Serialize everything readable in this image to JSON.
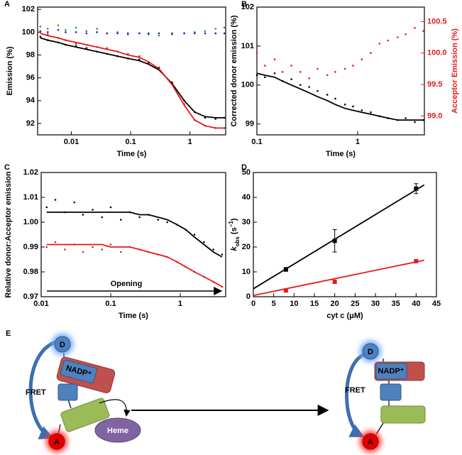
{
  "chart_data": [
    {
      "type": "scatter",
      "panel": "A",
      "xscale": "log",
      "xlabel": "Time (s)",
      "ylabel": "Emission (%)",
      "xlim": [
        0.0027,
        4
      ],
      "ylim": [
        91,
        102.2
      ],
      "xticks": [
        0.01,
        0.1,
        1
      ],
      "yticks": [
        92,
        94,
        96,
        98,
        100,
        102
      ],
      "series": [
        {
          "mode": "dots",
          "color": "#2ca02c",
          "x": [
            0.003,
            0.004,
            0.006,
            0.008,
            0.012,
            0.018,
            0.027,
            0.04,
            0.06,
            0.09,
            0.14,
            0.2,
            0.3,
            0.5,
            0.8,
            1.2,
            1.8,
            2.7,
            3.8
          ],
          "values": [
            100.5,
            100.3,
            100.6,
            100.2,
            100.4,
            100.1,
            100.3,
            99.9,
            100.0,
            99.8,
            99.9,
            99.8,
            99.7,
            99.8,
            99.9,
            100.0,
            100.1,
            100.3,
            100.4
          ]
        },
        {
          "mode": "dots",
          "color": "#1f1fcc",
          "x": [
            0.003,
            0.004,
            0.006,
            0.008,
            0.012,
            0.018,
            0.027,
            0.04,
            0.06,
            0.09,
            0.14,
            0.2,
            0.3,
            0.5,
            0.8,
            1.2,
            1.8,
            2.7,
            3.8
          ],
          "values": [
            100.1,
            100.0,
            100.2,
            100.0,
            100.0,
            99.9,
            100.0,
            99.9,
            99.9,
            99.9,
            99.9,
            99.9,
            99.9,
            99.9,
            99.9,
            99.9,
            99.9,
            99.9,
            99.9
          ]
        },
        {
          "mode": "dots",
          "color": "#000000",
          "x": [
            0.003,
            0.004,
            0.006,
            0.008,
            0.012,
            0.018,
            0.027,
            0.04,
            0.06,
            0.09,
            0.14,
            0.2,
            0.3,
            0.5,
            0.8,
            1.2,
            1.8,
            2.7,
            3.8
          ],
          "values": [
            99.6,
            99.3,
            99.1,
            98.9,
            98.8,
            98.6,
            98.3,
            98.1,
            97.9,
            97.7,
            97.6,
            97.3,
            96.9,
            95.6,
            94.0,
            93.0,
            92.5,
            92.4,
            92.5
          ]
        },
        {
          "mode": "dots",
          "color": "#e41a1c",
          "x": [
            0.003,
            0.004,
            0.006,
            0.008,
            0.012,
            0.018,
            0.027,
            0.04,
            0.06,
            0.09,
            0.14,
            0.2,
            0.3,
            0.5,
            0.8,
            1.2,
            1.8,
            2.7,
            3.8
          ],
          "values": [
            100.0,
            99.8,
            99.5,
            99.3,
            99.0,
            98.9,
            98.7,
            98.6,
            98.3,
            98.1,
            97.9,
            97.4,
            96.8,
            95.5,
            93.7,
            92.3,
            91.8,
            91.6,
            91.6
          ]
        },
        {
          "mode": "line",
          "color": "#000000",
          "x": [
            0.003,
            0.004,
            0.006,
            0.008,
            0.012,
            0.018,
            0.027,
            0.04,
            0.06,
            0.09,
            0.14,
            0.2,
            0.3,
            0.5,
            0.8,
            1.2,
            1.8,
            2.7,
            3.8
          ],
          "values": [
            99.5,
            99.3,
            99.1,
            98.9,
            98.7,
            98.5,
            98.3,
            98.1,
            97.9,
            97.7,
            97.5,
            97.2,
            96.7,
            95.5,
            94.0,
            93.0,
            92.6,
            92.5,
            92.5
          ]
        },
        {
          "mode": "line",
          "color": "#e41a1c",
          "x": [
            0.003,
            0.004,
            0.006,
            0.008,
            0.012,
            0.018,
            0.027,
            0.04,
            0.06,
            0.09,
            0.14,
            0.2,
            0.3,
            0.5,
            0.8,
            1.2,
            1.8,
            2.7,
            3.8
          ],
          "values": [
            99.9,
            99.7,
            99.5,
            99.3,
            99.1,
            98.9,
            98.7,
            98.5,
            98.3,
            98.0,
            97.8,
            97.4,
            96.8,
            95.4,
            93.6,
            92.3,
            91.8,
            91.6,
            91.6
          ]
        }
      ]
    },
    {
      "type": "scatter",
      "panel": "B",
      "xscale": "log",
      "xlabel": "Time (s)",
      "ylabel": "Corrected donor emission (%)",
      "y2label": "Acceptor Emission (%)",
      "y2color": "#e41a1c",
      "xlim": [
        0.1,
        4.6
      ],
      "ylim": [
        98.72,
        102
      ],
      "y2lim": [
        98.7,
        100.73
      ],
      "xticks": [
        0.1,
        1
      ],
      "yticks": [
        99,
        100,
        101,
        102
      ],
      "y2ticks": [
        {
          "value": 99,
          "label": "99.0"
        },
        99.5,
        {
          "value": 100,
          "label": "100.0"
        },
        100.5
      ],
      "series": [
        {
          "mode": "dots",
          "color": "#e41a1c",
          "axis": "y2",
          "x": [
            0.1,
            0.12,
            0.15,
            0.18,
            0.22,
            0.27,
            0.33,
            0.4,
            0.5,
            0.6,
            0.75,
            0.9,
            1.1,
            1.35,
            1.65,
            2,
            2.5,
            3,
            3.7,
            4.5
          ],
          "values": [
            100.0,
            99.8,
            99.9,
            99.7,
            99.8,
            99.7,
            99.6,
            99.75,
            99.65,
            99.7,
            99.75,
            99.8,
            99.9,
            100.0,
            100.15,
            100.2,
            100.25,
            100.3,
            100.4,
            100.35
          ]
        },
        {
          "mode": "dots",
          "color": "#000000",
          "x": [
            0.1,
            0.12,
            0.15,
            0.18,
            0.22,
            0.27,
            0.33,
            0.4,
            0.5,
            0.6,
            0.75,
            0.9,
            1.1,
            1.35,
            1.65,
            2,
            2.5,
            3,
            3.7,
            4.5
          ],
          "values": [
            100.25,
            100.2,
            100.3,
            100.1,
            100.15,
            100.0,
            99.95,
            99.85,
            99.75,
            99.65,
            99.5,
            99.45,
            99.35,
            99.3,
            99.2,
            99.15,
            99.1,
            99.15,
            99.05,
            99.1
          ]
        },
        {
          "mode": "line",
          "color": "#000000",
          "x": [
            0.1,
            0.12,
            0.15,
            0.18,
            0.22,
            0.27,
            0.33,
            0.4,
            0.5,
            0.6,
            0.75,
            0.9,
            1.1,
            1.35,
            1.65,
            2,
            2.5,
            3,
            3.7,
            4.5
          ],
          "values": [
            100.3,
            100.25,
            100.2,
            100.1,
            100.0,
            99.9,
            99.8,
            99.7,
            99.6,
            99.5,
            99.4,
            99.35,
            99.3,
            99.25,
            99.2,
            99.15,
            99.1,
            99.1,
            99.1,
            99.1
          ]
        }
      ]
    },
    {
      "type": "scatter",
      "panel": "C",
      "xscale": "log",
      "xlabel": "Time (s)",
      "ylabel": "Relative donor:Acceptor emission",
      "annotation": "Opening",
      "xlim": [
        0.01,
        4.5
      ],
      "ylim": [
        0.97,
        1.02
      ],
      "xticks": [
        0.01,
        0.1,
        1
      ],
      "yticks": [
        0.97,
        0.98,
        0.99,
        {
          "value": 1,
          "label": "1.00"
        },
        1.01,
        1.02
      ],
      "series": [
        {
          "mode": "dots",
          "color": "#000000",
          "x": [
            0.012,
            0.016,
            0.022,
            0.03,
            0.04,
            0.055,
            0.075,
            0.1,
            0.14,
            0.19,
            0.26,
            0.35,
            0.48,
            0.65,
            0.9,
            1.2,
            1.6,
            2.2,
            3,
            4
          ],
          "values": [
            1.006,
            1.009,
            1.004,
            1.008,
            1.003,
            1.005,
            1.002,
            1.006,
            1.001,
            1.004,
            1.002,
            1.003,
            1.001,
            1.0,
            0.999,
            0.997,
            0.995,
            0.992,
            0.989,
            0.987
          ]
        },
        {
          "mode": "dots",
          "color": "#e41a1c",
          "x": [
            0.012,
            0.016,
            0.022,
            0.03,
            0.04,
            0.055,
            0.075,
            0.1,
            0.14,
            0.19,
            0.26,
            0.35,
            0.48,
            0.65,
            0.9,
            1.2,
            1.6,
            2.2,
            3,
            4
          ],
          "values": [
            0.99,
            0.992,
            0.989,
            0.991,
            0.988,
            0.99,
            0.989,
            0.991,
            0.988,
            0.99,
            0.989,
            0.988,
            0.987,
            0.986,
            0.984,
            0.982,
            0.98,
            0.978,
            0.976,
            0.974
          ]
        },
        {
          "mode": "line",
          "color": "#000000",
          "x": [
            0.012,
            0.016,
            0.022,
            0.03,
            0.04,
            0.055,
            0.075,
            0.1,
            0.14,
            0.19,
            0.26,
            0.35,
            0.48,
            0.65,
            0.9,
            1.2,
            1.6,
            2.2,
            3,
            4
          ],
          "values": [
            1.004,
            1.004,
            1.004,
            1.004,
            1.004,
            1.004,
            1.004,
            1.004,
            1.004,
            1.004,
            1.003,
            1.003,
            1.002,
            1.001,
            0.999,
            0.997,
            0.994,
            0.991,
            0.988,
            0.986
          ]
        },
        {
          "mode": "line",
          "color": "#e41a1c",
          "x": [
            0.012,
            0.016,
            0.022,
            0.03,
            0.04,
            0.055,
            0.075,
            0.1,
            0.14,
            0.19,
            0.26,
            0.35,
            0.48,
            0.65,
            0.9,
            1.2,
            1.6,
            2.2,
            3,
            4
          ],
          "values": [
            0.991,
            0.991,
            0.991,
            0.991,
            0.991,
            0.991,
            0.991,
            0.99,
            0.99,
            0.99,
            0.989,
            0.988,
            0.987,
            0.986,
            0.984,
            0.982,
            0.98,
            0.978,
            0.976,
            0.974
          ]
        }
      ]
    },
    {
      "type": "scatter",
      "panel": "D",
      "xscale": "linear",
      "xlabel": "cyt c (μM)",
      "ylabel": [
        "k",
        "obs",
        " (s",
        "−1",
        ")"
      ],
      "xlim": [
        0,
        45
      ],
      "ylim": [
        0,
        50
      ],
      "xticks": [
        0,
        5,
        10,
        15,
        20,
        25,
        30,
        35,
        40,
        45
      ],
      "yticks": [
        0,
        10,
        20,
        30,
        40,
        50
      ],
      "series": [
        {
          "mode": "line",
          "color": "#000000",
          "x": [
            0,
            42
          ],
          "values": [
            3.2,
            45
          ]
        },
        {
          "mode": "line",
          "color": "#e41a1c",
          "x": [
            0,
            42
          ],
          "values": [
            0.5,
            14.7
          ]
        },
        {
          "mode": "markers",
          "color": "#000000",
          "x": [
            8,
            20,
            40
          ],
          "values": [
            11,
            22.5,
            43.5
          ],
          "errors": [
            0.8,
            4.5,
            2
          ]
        },
        {
          "mode": "markers",
          "color": "#e41a1c",
          "x": [
            8,
            20,
            40
          ],
          "values": [
            2.5,
            6,
            14.3
          ]
        }
      ]
    }
  ],
  "diagram": {
    "label": "E",
    "left": {
      "donor": "D",
      "nadp": "NADP⁺",
      "fret": "FRET",
      "heme": "Heme",
      "acceptor": "A"
    },
    "right": {
      "donor": "D",
      "nadp": "NADP⁺",
      "fret": "FRET",
      "acceptor": "A"
    }
  }
}
